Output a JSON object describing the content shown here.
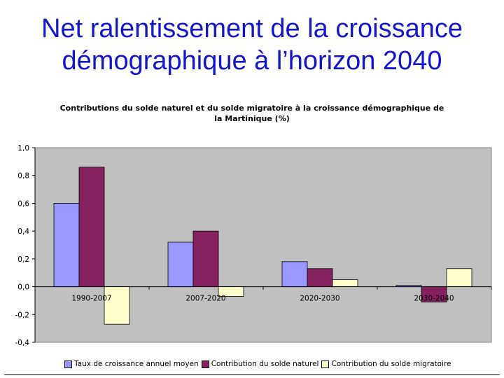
{
  "slide": {
    "title_line1": "Net ralentissement de la croissance",
    "title_line2": "démographique à l’horizon 2040"
  },
  "chart_data": {
    "type": "bar",
    "title": "Contributions du solde naturel et du solde migratoire à la croissance démographique de la Martinique (%)",
    "title_line1": "Contributions du solde naturel et du solde migratoire à la croissance démographique de",
    "title_line2": "la Martinique (%)",
    "categories": [
      "1990-2007",
      "2007-2020",
      "2020-2030",
      "2030-2040"
    ],
    "series": [
      {
        "name": "Taux de croissance annuel moyen",
        "color": "#9999ff",
        "values": [
          0.6,
          0.32,
          0.18,
          0.01
        ]
      },
      {
        "name": "Contribution du solde naturel",
        "color": "#862160",
        "values": [
          0.86,
          0.4,
          0.13,
          -0.11
        ]
      },
      {
        "name": "Contribution du solde migratoire",
        "color": "#ffffcc",
        "values": [
          -0.27,
          -0.07,
          0.05,
          0.13
        ]
      }
    ],
    "ylim": [
      -0.4,
      1.0
    ],
    "yticks": [
      "1,0",
      "0,8",
      "0,6",
      "0,4",
      "0,2",
      "0,0",
      "-0,2",
      "-0,4"
    ],
    "ytick_values": [
      1.0,
      0.8,
      0.6,
      0.4,
      0.2,
      0.0,
      -0.2,
      -0.4
    ],
    "grid": false,
    "plot_background": "#c0c0c0",
    "legend_position": "bottom"
  }
}
